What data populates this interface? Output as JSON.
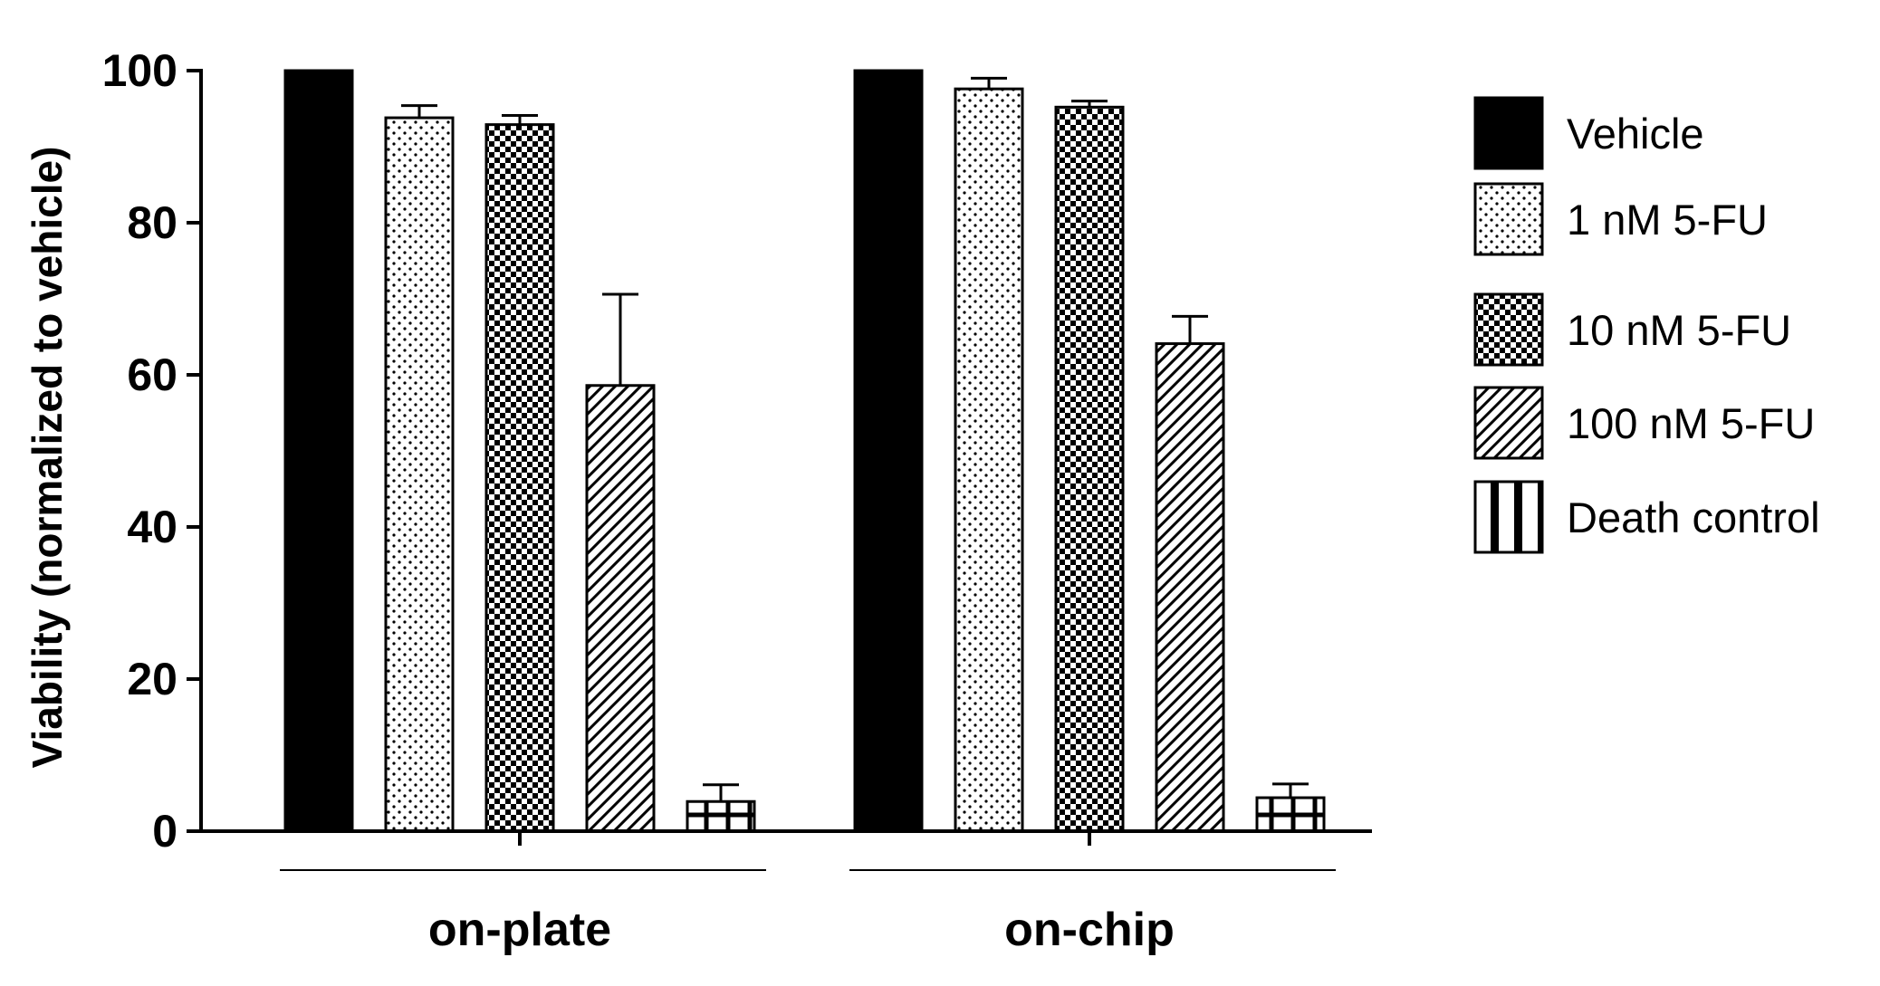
{
  "chart_data": {
    "type": "bar",
    "title": "",
    "xlabel": "",
    "ylabel": "Viability (normalized to vehicle)",
    "ylim": [
      0,
      100
    ],
    "yticks": [
      "0",
      "20",
      "40",
      "60",
      "80",
      "100"
    ],
    "categories": [
      "on-plate",
      "on-chip"
    ],
    "series": [
      {
        "name": "Vehicle",
        "pattern": "solid",
        "values": [
          100,
          100
        ],
        "errors": [
          0,
          0
        ]
      },
      {
        "name": "1 nM 5-FU",
        "pattern": "dots",
        "values": [
          93.8,
          97.6
        ],
        "errors": [
          1.6,
          1.4
        ]
      },
      {
        "name": "10 nM 5-FU",
        "pattern": "checker",
        "values": [
          92.9,
          95.2
        ],
        "errors": [
          1.2,
          0.8
        ]
      },
      {
        "name": "100 nM 5-FU",
        "pattern": "diagonal",
        "values": [
          58.6,
          64.1
        ],
        "errors": [
          12.0,
          3.6
        ]
      },
      {
        "name": "Death control",
        "pattern": "grid",
        "values": [
          3.9,
          4.4
        ],
        "errors": [
          2.2,
          1.8
        ]
      }
    ],
    "grid": false,
    "legend_position": "right"
  }
}
